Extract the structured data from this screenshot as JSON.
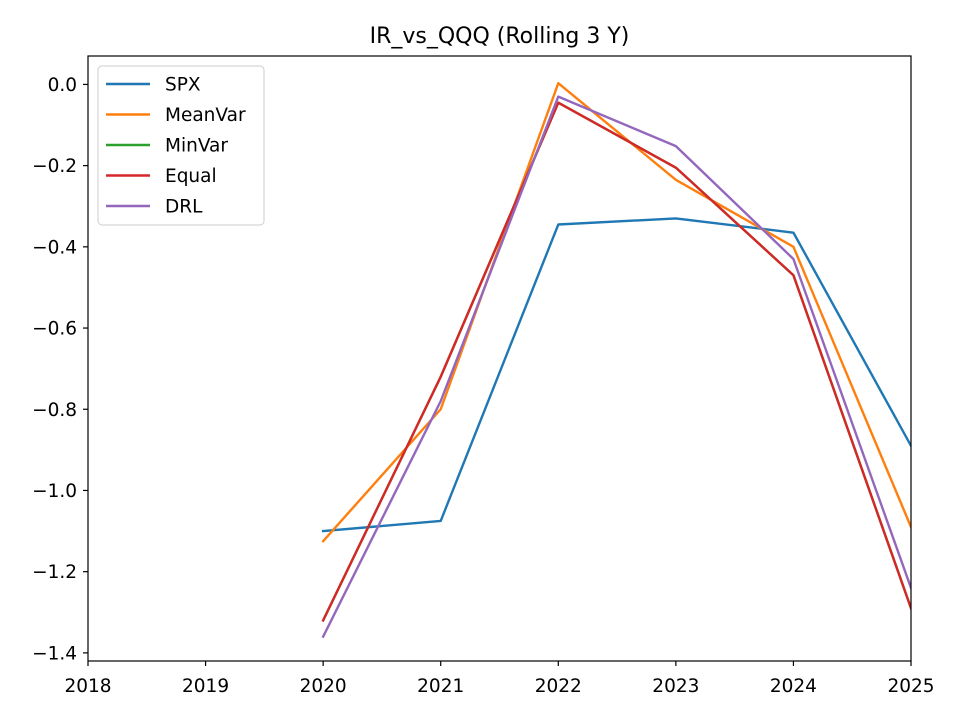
{
  "chart_data": {
    "type": "line",
    "title": "IR_vs_QQQ (Rolling 3 Y)",
    "xlabel": "",
    "ylabel": "",
    "xlim": [
      2018,
      2025
    ],
    "ylim": [
      -1.42,
      0.07
    ],
    "grid": false,
    "legend_position": "upper-left",
    "x_ticks": [
      "2018",
      "2019",
      "2020",
      "2021",
      "2022",
      "2023",
      "2024",
      "2025"
    ],
    "y_ticks": [
      "0.0",
      "−0.2",
      "−0.4",
      "−0.6",
      "−0.8",
      "−1.0",
      "−1.2",
      "−1.4"
    ],
    "x": [
      2020,
      2021,
      2022,
      2023,
      2024,
      2025
    ],
    "series": [
      {
        "name": "SPX",
        "color": "#1f77b4",
        "values": [
          -1.1,
          -1.075,
          -0.345,
          -0.33,
          -0.365,
          -0.89
        ]
      },
      {
        "name": "MeanVar",
        "color": "#ff7f0e",
        "values": [
          -1.125,
          -0.8,
          0.003,
          -0.235,
          -0.4,
          -1.09
        ]
      },
      {
        "name": "MinVar",
        "color": "#2ca02c",
        "values": [
          -1.32,
          -0.72,
          -0.045,
          -0.205,
          -0.47,
          -1.29
        ]
      },
      {
        "name": "Equal",
        "color": "#d62728",
        "values": [
          -1.32,
          -0.72,
          -0.045,
          -0.205,
          -0.47,
          -1.29
        ]
      },
      {
        "name": "DRL",
        "color": "#9467bd",
        "values": [
          -1.36,
          -0.78,
          -0.03,
          -0.152,
          -0.43,
          -1.24
        ]
      }
    ]
  }
}
